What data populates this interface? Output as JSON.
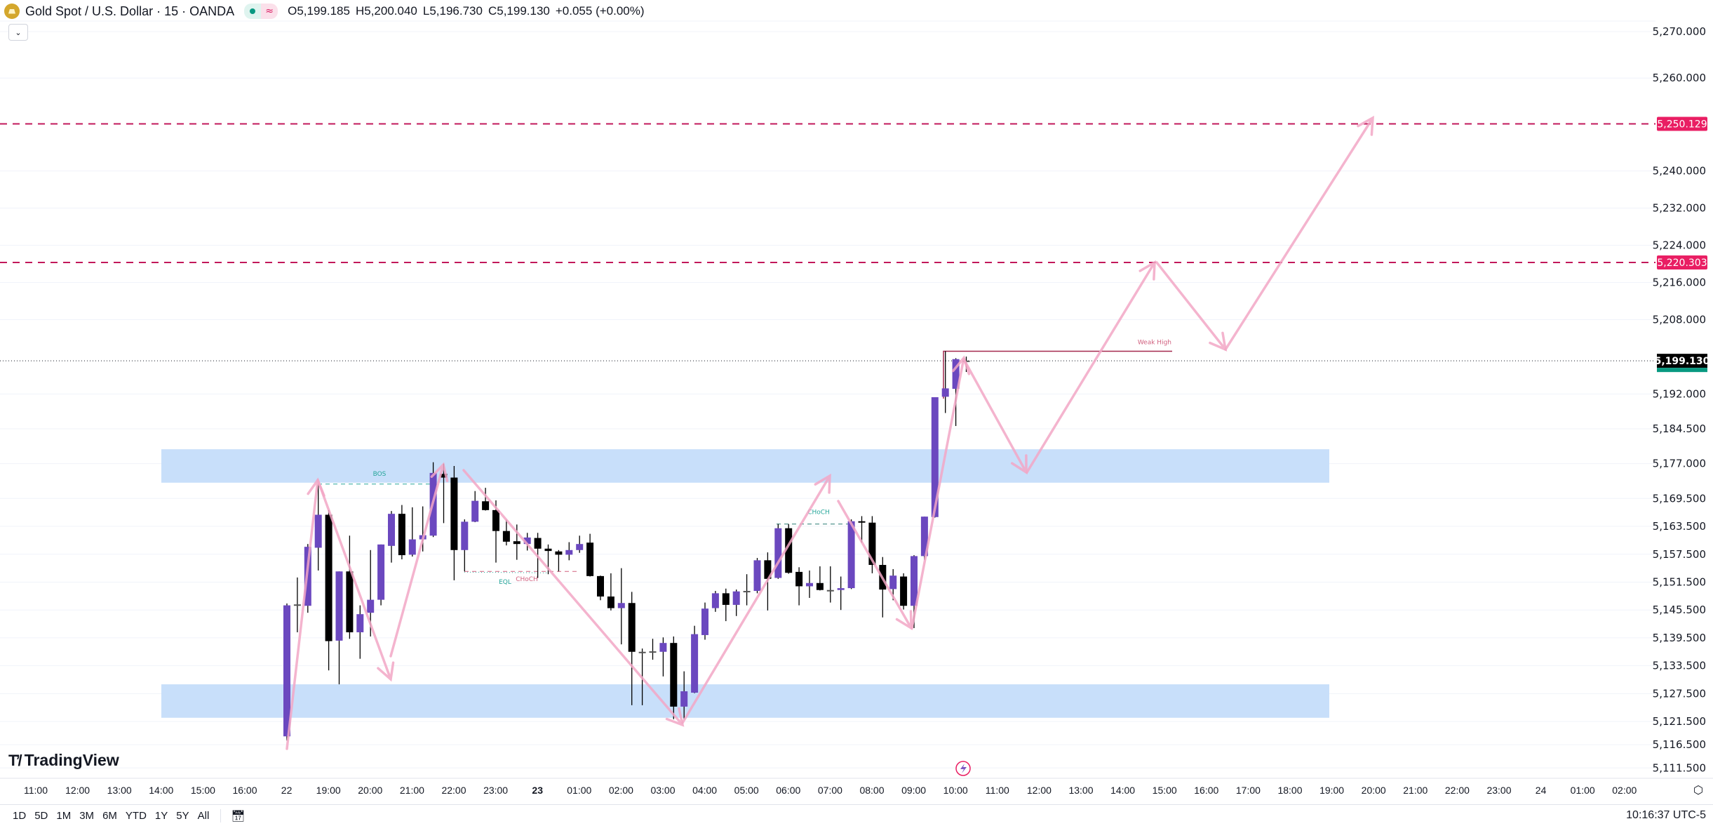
{
  "header": {
    "title": "Gold Spot / U.S. Dollar · 15 · OANDA",
    "open": "O5,199.185",
    "high": "H5,200.040",
    "low": "L5,196.730",
    "close": "C5,199.130",
    "change": "+0.055 (+0.00%)",
    "market_status_icon": "market-open-dot",
    "data_icon": "≈",
    "collapse_icon": "chevron-down"
  },
  "logo": {
    "text": "TradingView"
  },
  "toolbar": {
    "ranges": [
      "1D",
      "5D",
      "1M",
      "3M",
      "6M",
      "YTD",
      "1Y",
      "5Y",
      "All"
    ],
    "goto_icon": "calendar-goto-icon",
    "clock": "10:16:37 UTC-5"
  },
  "colors": {
    "up": "#6b48bf",
    "down": "#000000",
    "level": "#c2185b",
    "level_label": "#e91e63",
    "zone": "#c8dffa",
    "arrow": "#f2a7c6",
    "teal": "#26a69a",
    "last_price_bg": "#000000",
    "countdown_bg": "#089981"
  },
  "chart_data": {
    "type": "candlestick",
    "symbol": "Gold Spot / U.S. Dollar",
    "interval_minutes": 15,
    "price_ticks": [
      "5,270.000",
      "5,260.000",
      "5,240.000",
      "5,232.000",
      "5,224.000",
      "5,216.000",
      "5,208.000",
      "5,192.000",
      "5,184.500",
      "5,177.000",
      "5,169.500",
      "5,163.500",
      "5,157.500",
      "5,151.500",
      "5,145.500",
      "5,139.500",
      "5,133.500",
      "5,127.500",
      "5,121.500",
      "5,116.500",
      "5,111.500"
    ],
    "price_tick_values": [
      5270,
      5260,
      5240,
      5232,
      5224,
      5216,
      5208,
      5192,
      5184.5,
      5177,
      5169.5,
      5163.5,
      5157.5,
      5151.5,
      5145.5,
      5139.5,
      5133.5,
      5127.5,
      5121.5,
      5116.5,
      5111.5
    ],
    "ylim": [
      5111.5,
      5270
    ],
    "time_ticks": [
      "11:00",
      "12:00",
      "13:00",
      "14:00",
      "15:00",
      "16:00",
      "22",
      "19:00",
      "20:00",
      "21:00",
      "22:00",
      "23:00",
      "23",
      "01:00",
      "02:00",
      "03:00",
      "04:00",
      "05:00",
      "06:00",
      "07:00",
      "08:00",
      "09:00",
      "10:00",
      "11:00",
      "12:00",
      "13:00",
      "14:00",
      "15:00",
      "16:00",
      "17:00",
      "18:00",
      "19:00",
      "20:00",
      "21:00",
      "22:00",
      "23:00",
      "24",
      "01:00",
      "02:00"
    ],
    "bold_time_ticks": [
      "23"
    ],
    "candles": [
      [
        5118.3,
        5146.9,
        5117.4,
        5146.5
      ],
      [
        5146.7,
        5152.5,
        5140.7,
        5146.7
      ],
      [
        5146.4,
        5159.7,
        5144.9,
        5159.1
      ],
      [
        5158.9,
        5172.6,
        5154.0,
        5166.0
      ],
      [
        5166.0,
        5167.0,
        5132.5,
        5138.8
      ],
      [
        5138.9,
        5153.8,
        5129.5,
        5153.8
      ],
      [
        5153.8,
        5161.5,
        5139.3,
        5140.7
      ],
      [
        5140.7,
        5146.5,
        5135.0,
        5144.6
      ],
      [
        5144.9,
        5158.4,
        5139.8,
        5147.7
      ],
      [
        5147.7,
        5159.6,
        5146.5,
        5159.6
      ],
      [
        5159.3,
        5166.8,
        5155.7,
        5166.2
      ],
      [
        5166.2,
        5168.1,
        5156.4,
        5157.3
      ],
      [
        5157.4,
        5167.6,
        5157.0,
        5160.7
      ],
      [
        5160.7,
        5167.8,
        5158.1,
        5161.6
      ],
      [
        5161.5,
        5177.3,
        5161.2,
        5175.0
      ],
      [
        5174.8,
        5177.0,
        5164.2,
        5174.0
      ],
      [
        5174.0,
        5176.5,
        5151.9,
        5158.4
      ],
      [
        5158.4,
        5165.0,
        5153.8,
        5164.5
      ],
      [
        5164.5,
        5171.1,
        5164.4,
        5169.0
      ],
      [
        5168.9,
        5171.8,
        5166.9,
        5167.0
      ],
      [
        5167.0,
        5169.1,
        5155.7,
        5162.5
      ],
      [
        5162.5,
        5164.9,
        5159.4,
        5160.2
      ],
      [
        5160.3,
        5163.9,
        5156.3,
        5159.7
      ],
      [
        5159.7,
        5162.1,
        5158.3,
        5161.1
      ],
      [
        5161.0,
        5162.1,
        5152.4,
        5158.7
      ],
      [
        5158.7,
        5159.6,
        5153.2,
        5158.2
      ],
      [
        5158.1,
        5158.4,
        5153.8,
        5157.4
      ],
      [
        5157.4,
        5160.1,
        5156.2,
        5158.4
      ],
      [
        5158.4,
        5161.5,
        5157.8,
        5159.7
      ],
      [
        5160.0,
        5161.9,
        5152.7,
        5152.8
      ],
      [
        5152.8,
        5152.9,
        5147.6,
        5148.4
      ],
      [
        5148.4,
        5153.4,
        5145.4,
        5145.9
      ],
      [
        5145.9,
        5154.5,
        5138.1,
        5147.0
      ],
      [
        5147.0,
        5149.4,
        5125.0,
        5136.5
      ],
      [
        5136.5,
        5137.2,
        5125.0,
        5136.5
      ],
      [
        5136.6,
        5139.3,
        5134.8,
        5136.6
      ],
      [
        5136.5,
        5139.6,
        5131.2,
        5138.4
      ],
      [
        5138.4,
        5139.8,
        5122.0,
        5124.7
      ],
      [
        5124.7,
        5132.3,
        5122.0,
        5128.0
      ],
      [
        5127.7,
        5142.1,
        5127.6,
        5140.3
      ],
      [
        5140.1,
        5147.1,
        5139.1,
        5145.8
      ],
      [
        5145.9,
        5149.6,
        5145.1,
        5149.1
      ],
      [
        5149.1,
        5150.1,
        5143.1,
        5146.6
      ],
      [
        5146.6,
        5149.9,
        5144.2,
        5149.5
      ],
      [
        5149.6,
        5153.2,
        5146.5,
        5149.6
      ],
      [
        5149.6,
        5156.7,
        5149.1,
        5156.2
      ],
      [
        5156.2,
        5157.9,
        5145.4,
        5152.2
      ],
      [
        5152.4,
        5164.0,
        5152.2,
        5163.1
      ],
      [
        5163.1,
        5164.0,
        5153.3,
        5153.5
      ],
      [
        5153.7,
        5154.7,
        5146.5,
        5150.6
      ],
      [
        5150.6,
        5154.0,
        5148.1,
        5151.3
      ],
      [
        5151.3,
        5154.9,
        5149.7,
        5149.8
      ],
      [
        5149.8,
        5154.9,
        5147.1,
        5149.8
      ],
      [
        5149.8,
        5152.7,
        5145.5,
        5150.2
      ],
      [
        5150.2,
        5165.0,
        5150.0,
        5164.6
      ],
      [
        5164.6,
        5165.7,
        5160.0,
        5164.3
      ],
      [
        5164.3,
        5165.7,
        5153.4,
        5155.2
      ],
      [
        5155.2,
        5156.9,
        5143.9,
        5149.9
      ],
      [
        5150.0,
        5154.3,
        5147.6,
        5152.9
      ],
      [
        5152.7,
        5153.4,
        5145.6,
        5146.4
      ],
      [
        5146.4,
        5157.3,
        5141.6,
        5157.1
      ],
      [
        5157.1,
        5165.6,
        5156.3,
        5165.6
      ],
      [
        5165.5,
        5191.3,
        5165.4,
        5191.3
      ],
      [
        5191.4,
        5201.2,
        5187.9,
        5193.2
      ],
      [
        5193.1,
        5199.7,
        5185.1,
        5199.5
      ],
      [
        5199.185,
        5200.04,
        5196.73,
        5199.13
      ]
    ],
    "levels": [
      {
        "price": 5250.129,
        "label": "5,250.129"
      },
      {
        "price": 5220.303,
        "label": "5,220.303"
      }
    ],
    "last_price": {
      "price": 5199.13,
      "label": "5,199.130"
    },
    "zones": [
      {
        "top": 5180.1,
        "bottom": 5172.9
      },
      {
        "top": 5129.5,
        "bottom": 5122.3
      }
    ],
    "annotations": [
      {
        "text": "BOS",
        "price": 5172.6,
        "color": "teal"
      },
      {
        "text": "EQL",
        "price": 5153.8,
        "color": "teal"
      },
      {
        "text": "CHoCH",
        "price": 5153.8,
        "color": "red"
      },
      {
        "text": "CHoCH",
        "price": 5164.0,
        "color": "teal"
      },
      {
        "text": "Weak High",
        "price": 5201.2,
        "color": "red"
      }
    ]
  }
}
